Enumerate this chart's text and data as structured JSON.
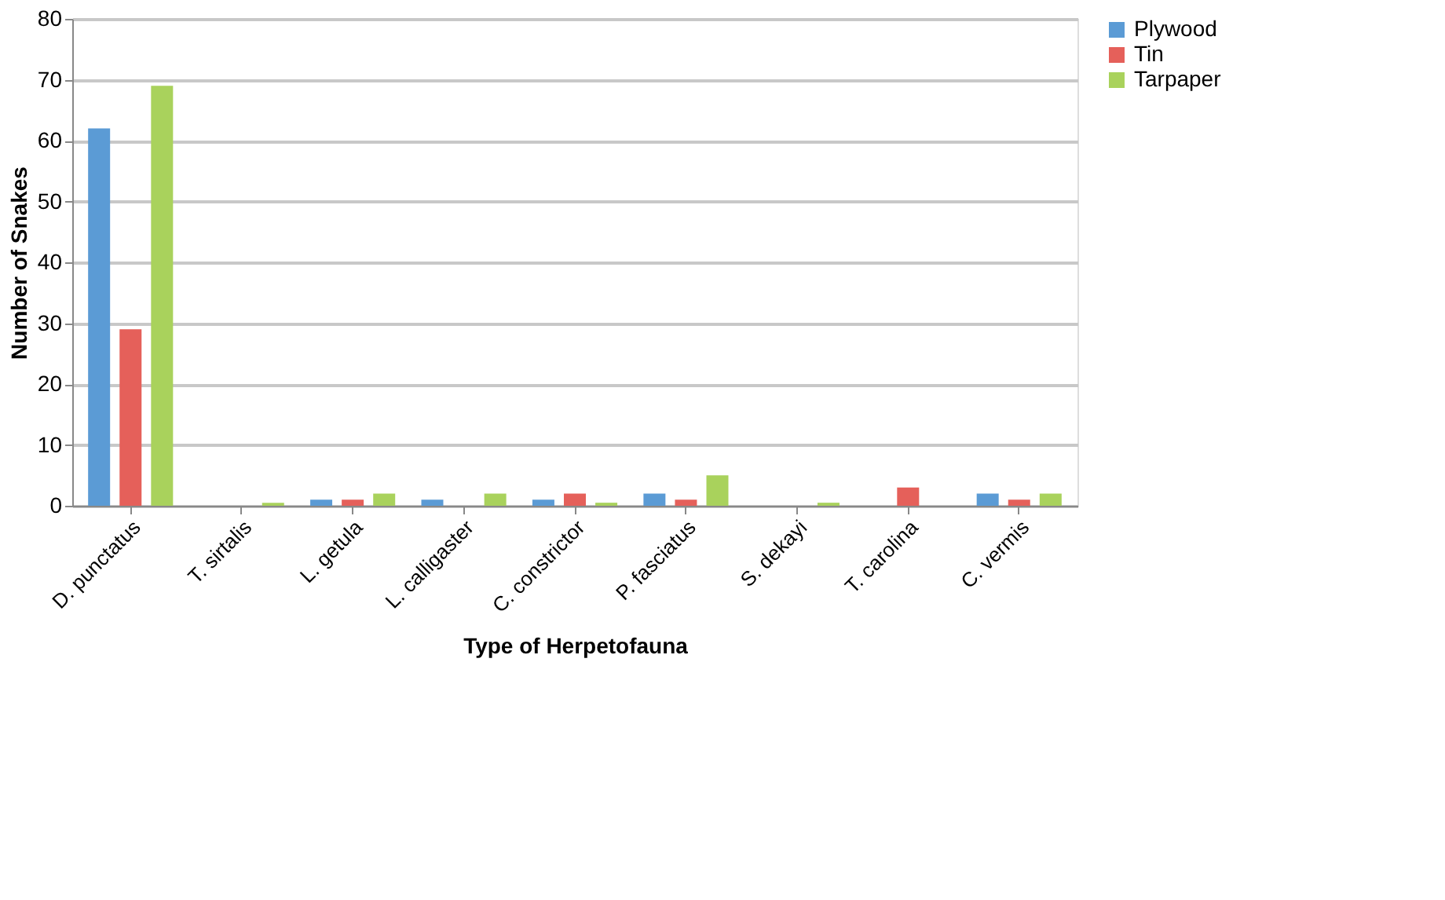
{
  "chart_data": {
    "type": "bar",
    "xlabel": "Type of Herpetofauna",
    "ylabel": "Number of Snakes",
    "categories": [
      "D. punctatus",
      "T. sirtalis",
      "L. getula",
      "L. calligaster",
      "C. constrictor",
      "P. fasciatus",
      "S. dekayi",
      "T. carolina",
      "C. vermis"
    ],
    "series": [
      {
        "name": "Plywood",
        "color": "#5b9bd5",
        "values": [
          62,
          0,
          1,
          1,
          1,
          2,
          0,
          0,
          2
        ]
      },
      {
        "name": "Tin",
        "color": "#e5605a",
        "values": [
          29,
          0,
          1,
          0,
          2,
          1,
          0,
          3,
          1
        ]
      },
      {
        "name": "Tarpaper",
        "color": "#a9d25c",
        "values": [
          69,
          0.5,
          2,
          2,
          0.5,
          5,
          0.5,
          0,
          2
        ]
      }
    ],
    "ylim": [
      0,
      80
    ],
    "yticks": [
      0,
      10,
      20,
      30,
      40,
      50,
      60,
      70,
      80
    ],
    "grid": "y",
    "legend": "right"
  }
}
